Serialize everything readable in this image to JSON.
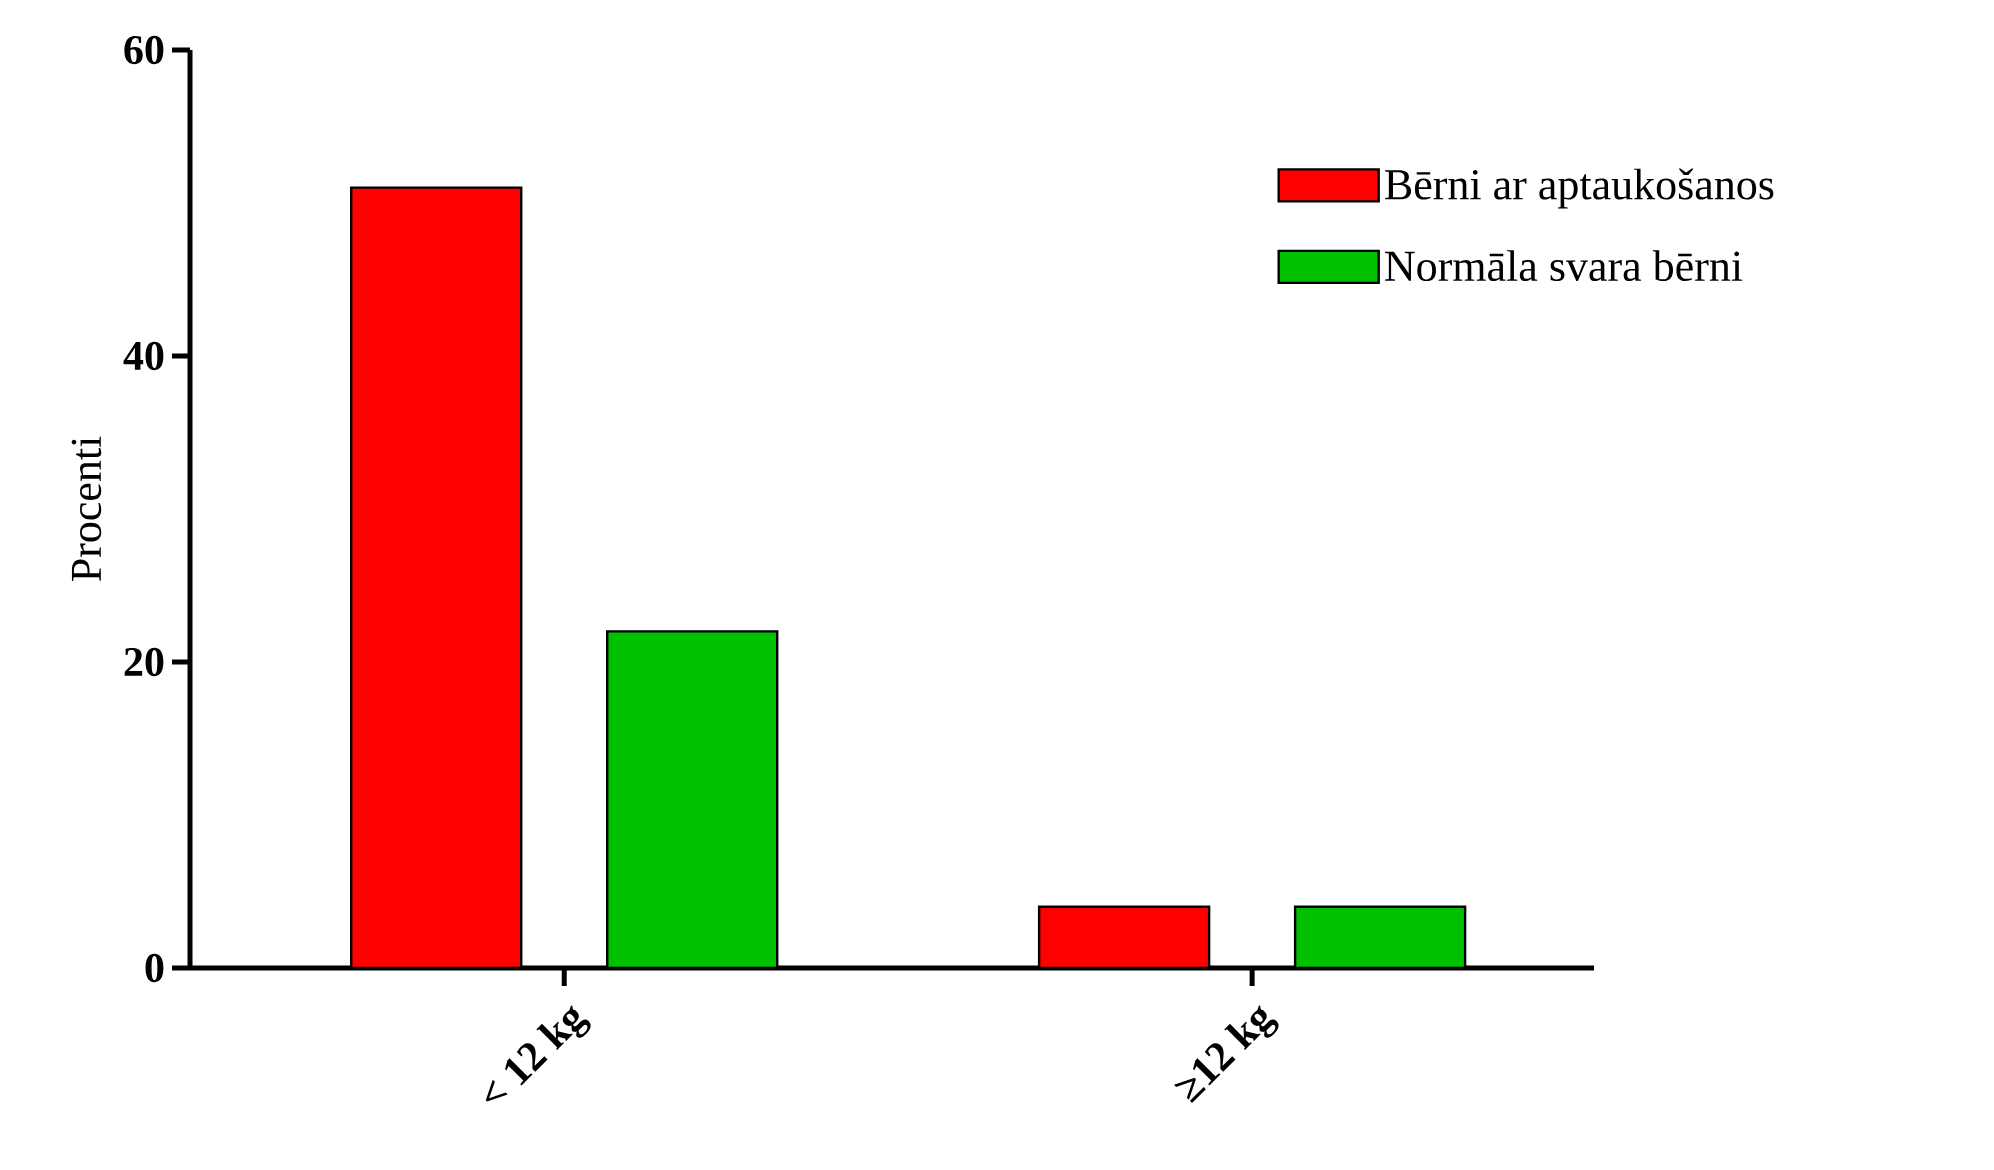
{
  "chart_data": {
    "type": "bar",
    "ylabel": "Procenti",
    "categories": [
      "< 12 kg",
      "≥12 kg"
    ],
    "series": [
      {
        "name": "Bērni ar aptaukošanos",
        "color": "#ff0000",
        "values": [
          51,
          4
        ]
      },
      {
        "name": "Normāla svara bērni",
        "color": "#00c000",
        "values": [
          22,
          4
        ]
      }
    ],
    "ylim": [
      0,
      60
    ],
    "yticks": [
      0,
      20,
      40,
      60
    ],
    "legend": "top right"
  }
}
